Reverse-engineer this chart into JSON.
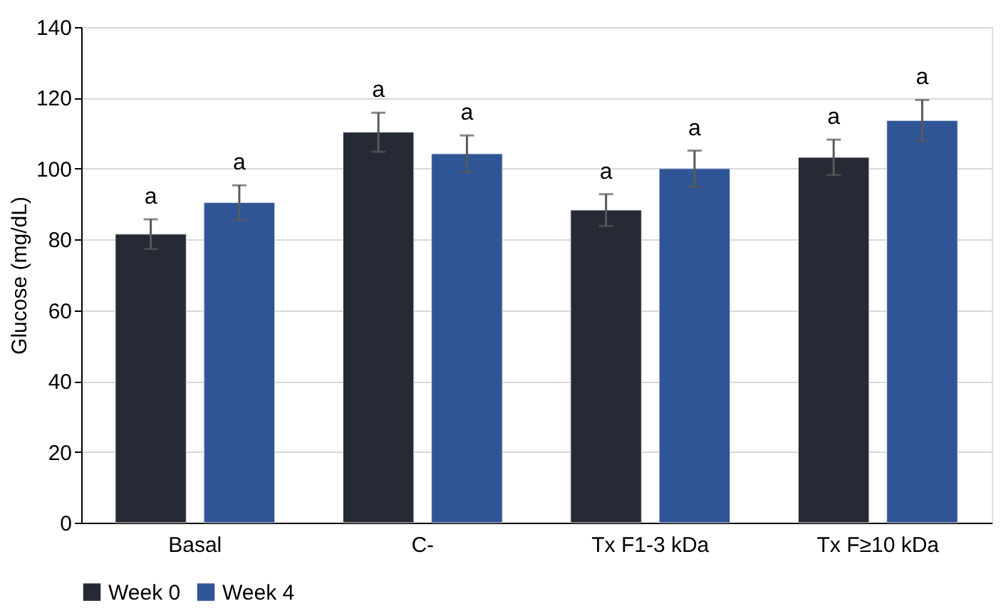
{
  "chart_data": {
    "type": "bar",
    "ylabel": "Glucose (mg/dL)",
    "categories": [
      "Basal",
      "C-",
      "Tx F1-3 kDa",
      "Tx F≥10 kDa"
    ],
    "series": [
      {
        "name": "Week 0",
        "color": "#252a35",
        "values": [
          81.5,
          110.3,
          88.3,
          103.2
        ],
        "errors": [
          4.2,
          5.5,
          4.5,
          5
        ],
        "value_labels": [
          "a",
          "a",
          "a",
          "a"
        ]
      },
      {
        "name": "Week 4",
        "color": "#2f5597",
        "values": [
          90.4,
          104.2,
          100,
          113.6
        ],
        "errors": [
          4.9,
          5.2,
          5.1,
          5.8
        ],
        "value_labels": [
          "a",
          "a",
          "a",
          "a"
        ]
      }
    ],
    "ylim": [
      0,
      140
    ],
    "yticks": [
      0,
      20,
      40,
      60,
      80,
      100,
      120,
      140
    ],
    "grid": "y",
    "legend": "bottom"
  }
}
